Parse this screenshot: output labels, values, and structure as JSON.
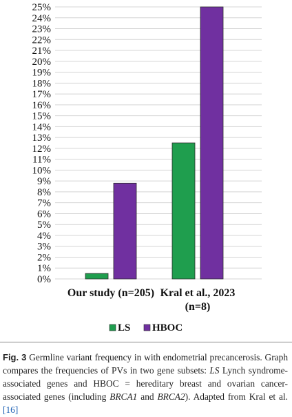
{
  "chart_data": {
    "type": "bar",
    "categories": [
      "Our study (n=205)",
      "Kral et al., 2023 (n=8)"
    ],
    "category_lines": [
      [
        "Our study (n=205)"
      ],
      [
        "Kral et al., 2023",
        "(n=8)"
      ]
    ],
    "series": [
      {
        "name": "LS",
        "values": [
          0.5,
          12.5
        ],
        "color": "#1f9e4e"
      },
      {
        "name": "HBOC",
        "values": [
          8.8,
          25.0
        ],
        "color": "#7030a0"
      }
    ],
    "yticks": [
      "0%",
      "1%",
      "2%",
      "3%",
      "4%",
      "5%",
      "6%",
      "7%",
      "8%",
      "9%",
      "10%",
      "11%",
      "12%",
      "13%",
      "14%",
      "15%",
      "16%",
      "17%",
      "18%",
      "19%",
      "20%",
      "21%",
      "22%",
      "23%",
      "24%",
      "25%"
    ],
    "ylim": [
      0,
      25
    ],
    "grid": true,
    "legend_position": "bottom-center"
  },
  "caption": {
    "fig_label": "Fig. 3",
    "part1": " Germline variant frequency in with endometrial precancerosis. Graph compares the frequencies of PVs in two gene subsets: ",
    "ls_abbr": "LS",
    "part2": " Lynch syndrome-associated genes and HBOC = hereditary breast and ovarian cancer-associated genes (including ",
    "gene1": "BRCA1",
    "part3": " and ",
    "gene2": "BRCA2",
    "part4": "). Adapted from Kral et al. ",
    "ref": "[16]"
  }
}
